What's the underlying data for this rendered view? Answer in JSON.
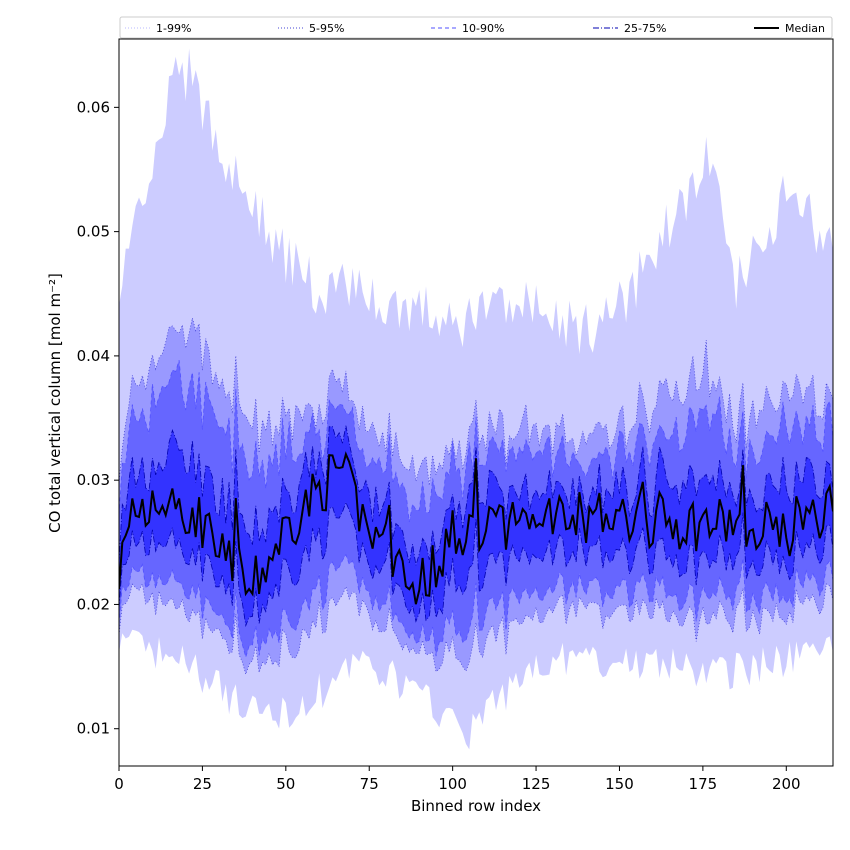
{
  "chart_data": {
    "type": "area",
    "xlabel": "Binned row index",
    "ylabel": "CO total vertical column [mol m⁻²]",
    "xlim": [
      0,
      214
    ],
    "ylim": [
      0.007,
      0.0655
    ],
    "x_ticks": [
      0,
      25,
      50,
      75,
      100,
      125,
      150,
      175,
      200
    ],
    "y_ticks": [
      0.01,
      0.02,
      0.03,
      0.04,
      0.05,
      0.06
    ],
    "y_tick_labels": [
      "0.01",
      "0.02",
      "0.03",
      "0.04",
      "0.05",
      "0.06"
    ],
    "legend_position": "top, spanning full width",
    "series": [
      {
        "name": "1-99%",
        "color": "#ccccff",
        "line_color": "#b8b8ff",
        "line_style": "dotted"
      },
      {
        "name": "5-95%",
        "color": "#9999ff",
        "line_color": "#4646d6",
        "line_style": "dotted"
      },
      {
        "name": "10-90%",
        "color": "#6666ff",
        "line_color": "#5252ff",
        "line_style": "dashed"
      },
      {
        "name": "25-75%",
        "color": "#3333ff",
        "line_color": "#0000b0",
        "line_style": "dashdot"
      },
      {
        "name": "Median",
        "color": "#000000",
        "line_style": "solid"
      }
    ],
    "median_approx": [
      {
        "x": 0,
        "y": 0.0235
      },
      {
        "x": 10,
        "y": 0.028
      },
      {
        "x": 20,
        "y": 0.0275
      },
      {
        "x": 30,
        "y": 0.026
      },
      {
        "x": 39,
        "y": 0.0207
      },
      {
        "x": 50,
        "y": 0.0262
      },
      {
        "x": 66,
        "y": 0.031
      },
      {
        "x": 75,
        "y": 0.026
      },
      {
        "x": 90,
        "y": 0.0215
      },
      {
        "x": 100,
        "y": 0.0255
      },
      {
        "x": 125,
        "y": 0.027
      },
      {
        "x": 150,
        "y": 0.027
      },
      {
        "x": 175,
        "y": 0.0265
      },
      {
        "x": 200,
        "y": 0.0265
      },
      {
        "x": 214,
        "y": 0.028
      }
    ],
    "upper_99_approx": [
      {
        "x": 0,
        "y": 0.045
      },
      {
        "x": 5,
        "y": 0.052
      },
      {
        "x": 10,
        "y": 0.054
      },
      {
        "x": 16,
        "y": 0.062
      },
      {
        "x": 21,
        "y": 0.0625
      },
      {
        "x": 30,
        "y": 0.057
      },
      {
        "x": 40,
        "y": 0.052
      },
      {
        "x": 50,
        "y": 0.048
      },
      {
        "x": 60,
        "y": 0.045
      },
      {
        "x": 70,
        "y": 0.046
      },
      {
        "x": 80,
        "y": 0.044
      },
      {
        "x": 90,
        "y": 0.044
      },
      {
        "x": 100,
        "y": 0.042
      },
      {
        "x": 110,
        "y": 0.044
      },
      {
        "x": 125,
        "y": 0.044
      },
      {
        "x": 140,
        "y": 0.042
      },
      {
        "x": 150,
        "y": 0.044
      },
      {
        "x": 160,
        "y": 0.048
      },
      {
        "x": 170,
        "y": 0.053
      },
      {
        "x": 176,
        "y": 0.056
      },
      {
        "x": 185,
        "y": 0.046
      },
      {
        "x": 200,
        "y": 0.053
      },
      {
        "x": 214,
        "y": 0.049
      }
    ],
    "lower_1_approx": [
      {
        "x": 0,
        "y": 0.017
      },
      {
        "x": 20,
        "y": 0.0155
      },
      {
        "x": 39,
        "y": 0.0112
      },
      {
        "x": 50,
        "y": 0.0113
      },
      {
        "x": 75,
        "y": 0.0155
      },
      {
        "x": 105,
        "y": 0.0097
      },
      {
        "x": 125,
        "y": 0.0155
      },
      {
        "x": 150,
        "y": 0.0155
      },
      {
        "x": 180,
        "y": 0.0145
      },
      {
        "x": 200,
        "y": 0.0155
      },
      {
        "x": 214,
        "y": 0.0165
      }
    ]
  }
}
